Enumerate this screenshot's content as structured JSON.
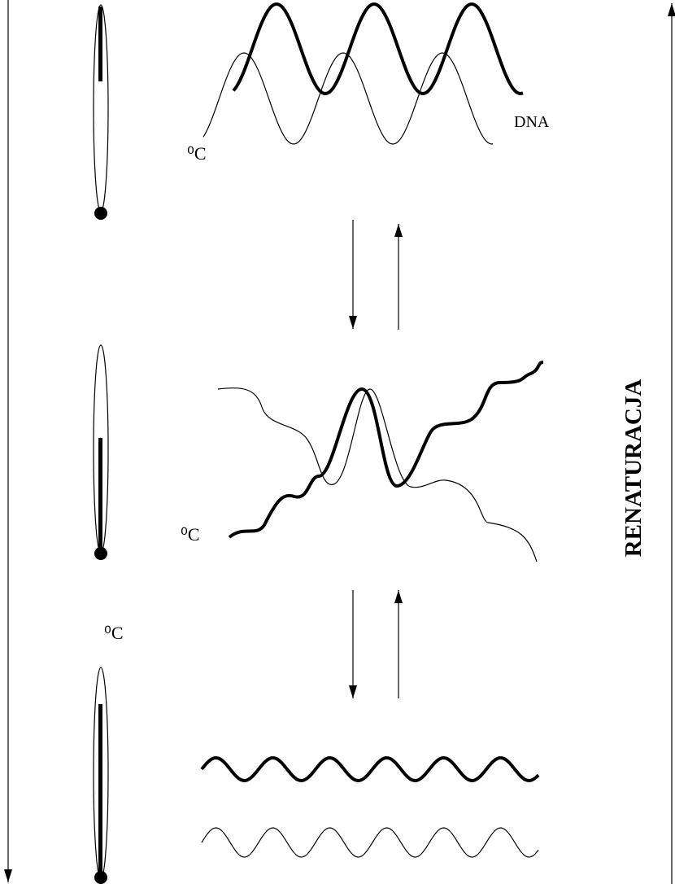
{
  "labels": {
    "dna": "DNA",
    "side": "RENATURACJA",
    "units": [
      "⁰C",
      "⁰C",
      "⁰C"
    ]
  }
}
